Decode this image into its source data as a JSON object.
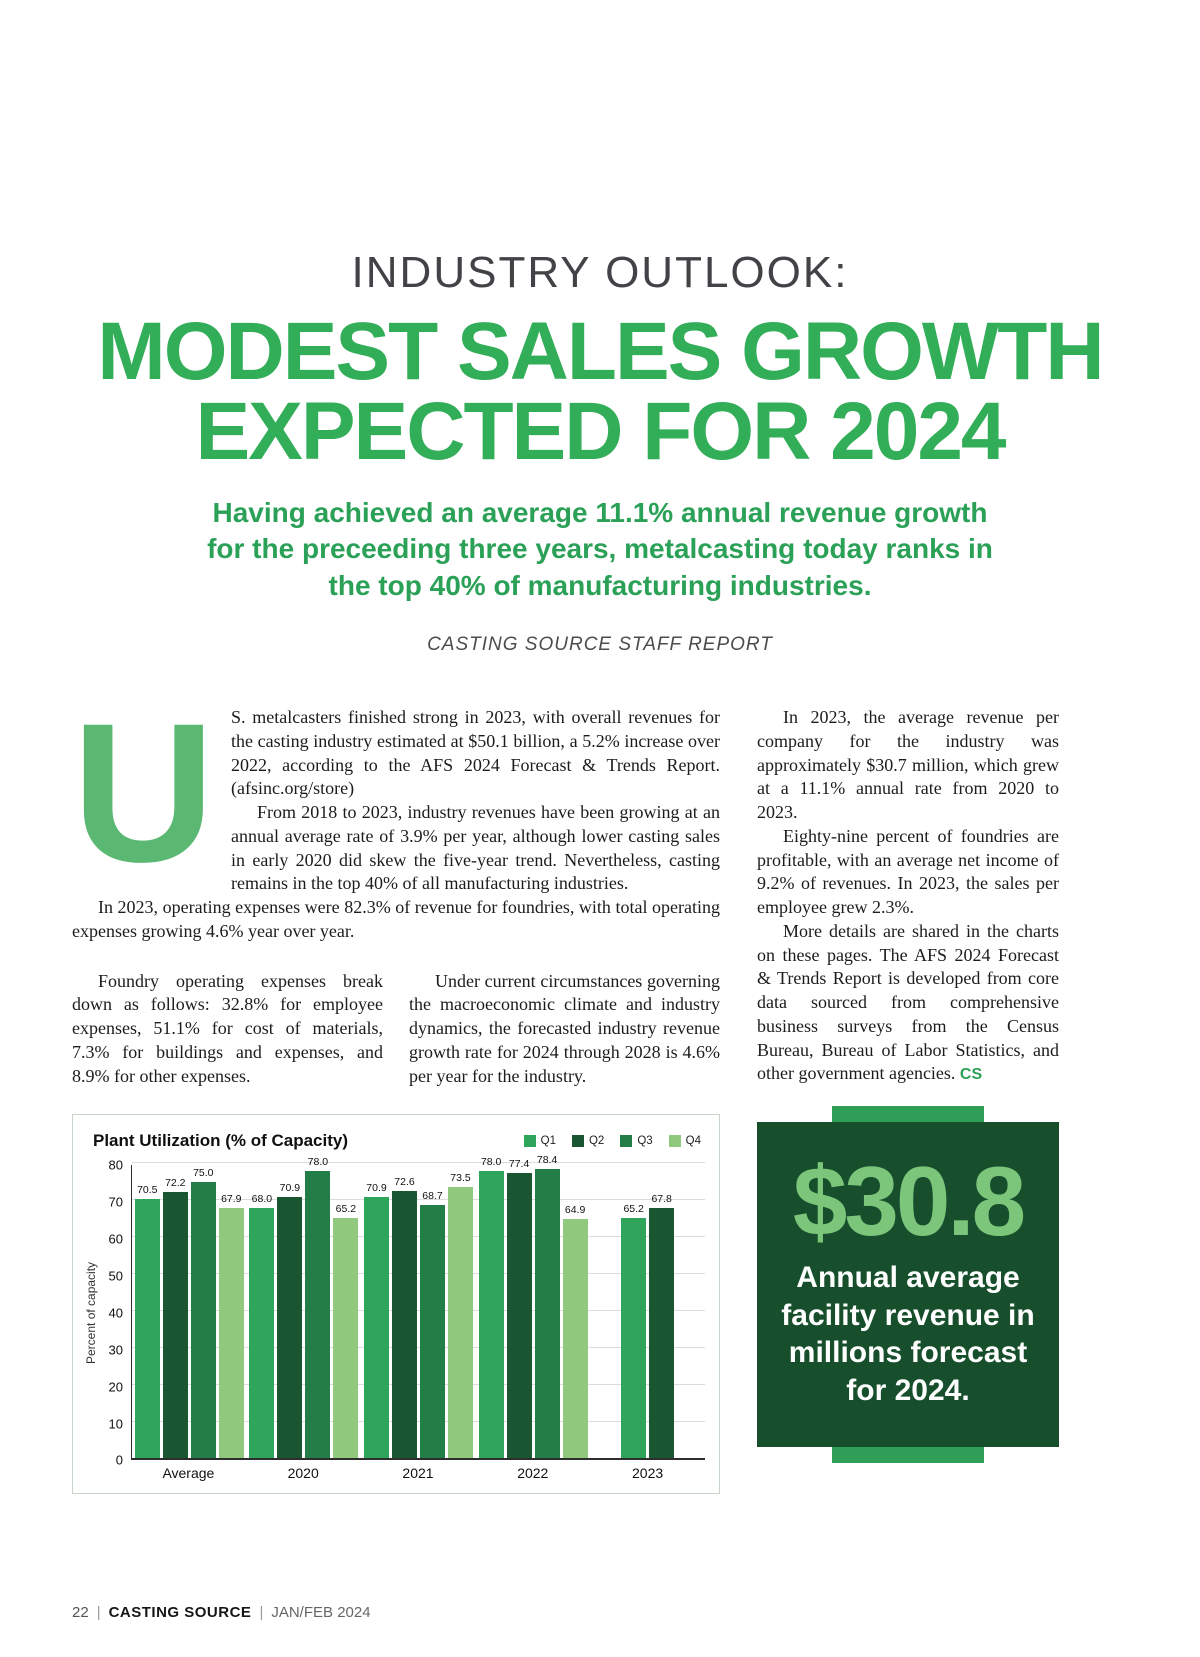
{
  "header": {
    "kicker": "INDUSTRY OUTLOOK:",
    "title_line1": "MODEST SALES GROWTH",
    "title_line2": "EXPECTED FOR 2024",
    "subtitle": "Having achieved an average 11.1% annual revenue growth for the preceeding three years, metalcasting today ranks in the top 40% of manufacturing industries.",
    "byline": "CASTING SOURCE STAFF REPORT"
  },
  "article": {
    "dropcap": "U",
    "lede_para1": "S. metalcasters finished strong in 2023, with overall revenues for the casting industry estimated at $50.1 billion, a 5.2% increase over 2022, according to the AFS 2024 Forecast & Trends Report. (afsinc.org/store)",
    "lede_para2": "From 2018 to 2023, industry revenues have been growing at an annual average rate of 3.9% per year, although lower casting sales in early 2020 did skew the five-year trend. Nevertheless, casting remains in the top 40% of all manufacturing industries.",
    "lede_para3": "In 2023, operating expenses were 82.3% of revenue for foundries, with total operating expenses growing 4.6% year over year.",
    "col1_para": "Foundry operating expenses break down as follows: 32.8% for employee expenses, 51.1% for cost of materials, 7.3% for buildings and expenses, and 8.9% for other expenses.",
    "col2_para": "Under current circumstances governing the macroeconomic climate and industry dynamics, the forecasted industry revenue growth rate for 2024 through 2028 is 4.6% per year for the industry.",
    "right_para1": "In 2023, the average revenue per company for the industry was approximately $30.7 million, which grew at a 11.1% annual rate from 2020 to 2023.",
    "right_para2": "Eighty-nine percent of foundries are profitable, with an average net income of 9.2% of revenues. In 2023, the sales per employee grew 2.3%.",
    "right_para3": "More details are shared in the charts on these pages. The AFS 2024 Forecast & Trends Report is developed from core data sourced from comprehensive business surveys from the Census Bureau, Bureau of Labor Statistics, and other government agencies.",
    "end_mark": "CS"
  },
  "chart_data": {
    "type": "bar",
    "title": "Plant Utilization (% of Capacity)",
    "ylabel": "Percent of capacity",
    "ylim": [
      0,
      80
    ],
    "yticks": [
      0,
      10,
      20,
      30,
      40,
      50,
      60,
      70,
      80
    ],
    "grid": true,
    "legend_position": "top-right",
    "categories": [
      "Average",
      "2020",
      "2021",
      "2022",
      "2023"
    ],
    "series": [
      {
        "name": "Q1",
        "color": "#2fa55c",
        "values": [
          70.5,
          68.0,
          70.9,
          78.0,
          65.2
        ]
      },
      {
        "name": "Q2",
        "color": "#1b5633",
        "values": [
          72.2,
          70.9,
          72.6,
          77.4,
          67.8
        ]
      },
      {
        "name": "Q3",
        "color": "#227d47",
        "values": [
          75.0,
          78.0,
          68.7,
          78.4,
          null
        ]
      },
      {
        "name": "Q4",
        "color": "#90c97e",
        "values": [
          67.9,
          65.2,
          73.5,
          64.9,
          null
        ]
      }
    ]
  },
  "callout": {
    "value": "$30.8",
    "text": "Annual average facility revenue in millions forecast for 2024."
  },
  "footer": {
    "page_number": "22",
    "separator": "|",
    "magazine": "CASTING SOURCE",
    "issue": "JAN/FEB 2024"
  },
  "colors": {
    "title_green": "#32ad58",
    "subtitle_green": "#2ba158",
    "dropcap_green": "#5bb873",
    "callout_background": "#174f2d",
    "callout_value_green": "#7cc67c",
    "callout_tab_green": "#2f9e57"
  }
}
